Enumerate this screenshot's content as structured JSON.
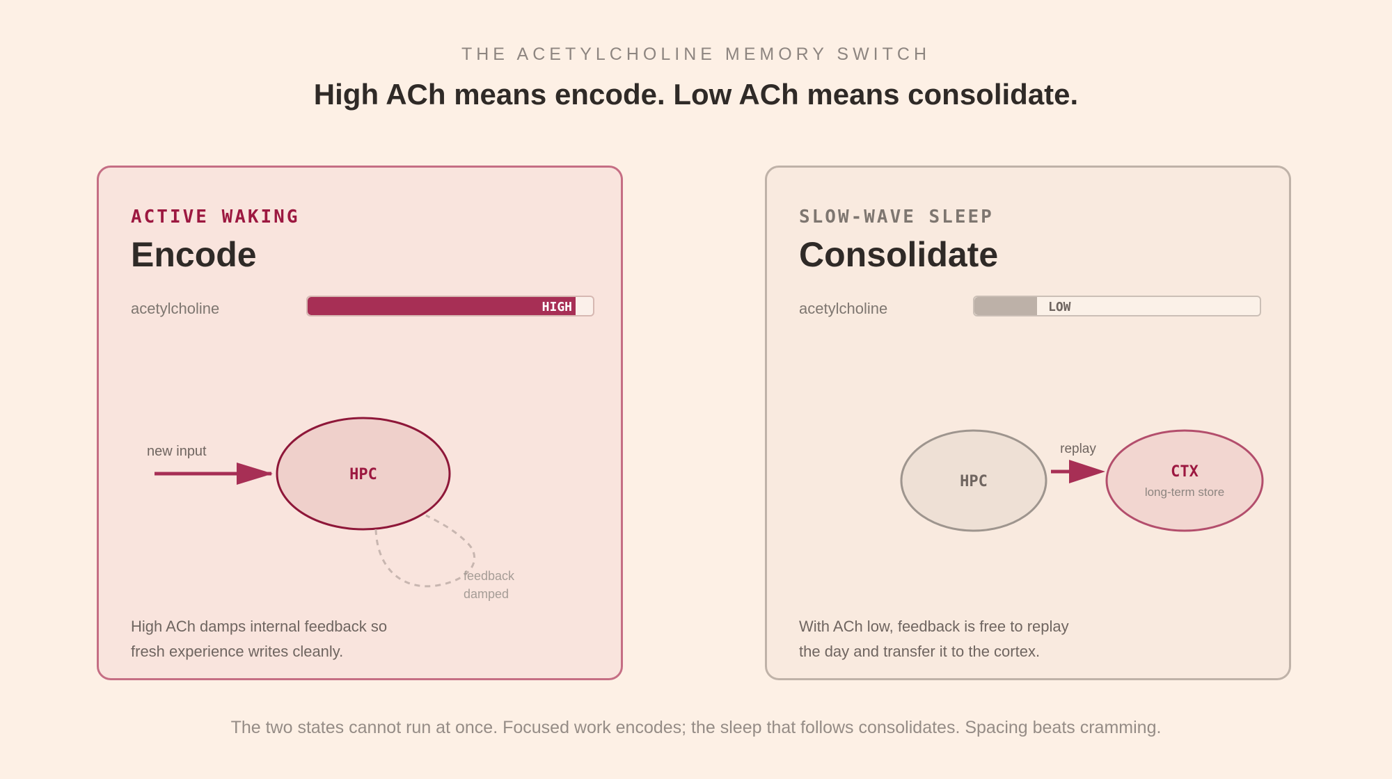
{
  "header": {
    "eyebrow": "THE ACETYLCHOLINE MEMORY SWITCH",
    "headline": "High ACh means encode. Low ACh means consolidate."
  },
  "panels": {
    "encode": {
      "state_label": "ACTIVE WAKING",
      "title": "Encode",
      "ach_label": "acetylcholine",
      "ach_level_text": "HIGH",
      "ach_level_fraction": 0.94,
      "accent_color": "#a72f55",
      "diagram": {
        "input_label": "new input",
        "node_label": "HPC",
        "feedback_label_line1": "feedback",
        "feedback_label_line2": "damped"
      },
      "description_line1": "High ACh damps internal feedback so",
      "description_line2": "fresh experience writes cleanly."
    },
    "consolidate": {
      "state_label": "SLOW-WAVE SLEEP",
      "title": "Consolidate",
      "ach_label": "acetylcholine",
      "ach_level_text": "LOW",
      "ach_level_fraction": 0.22,
      "accent_color": "#bdb1a8",
      "diagram": {
        "source_node_label": "HPC",
        "arrow_label": "replay",
        "target_node_label": "CTX",
        "target_node_sublabel": "long-term store"
      },
      "description_line1": "With ACh low, feedback is free to replay",
      "description_line2": "the day and transfer it to the cortex."
    }
  },
  "footer": {
    "text": "The two states cannot run at once. Focused work encodes; the sleep that follows consolidates. Spacing beats cramming."
  }
}
